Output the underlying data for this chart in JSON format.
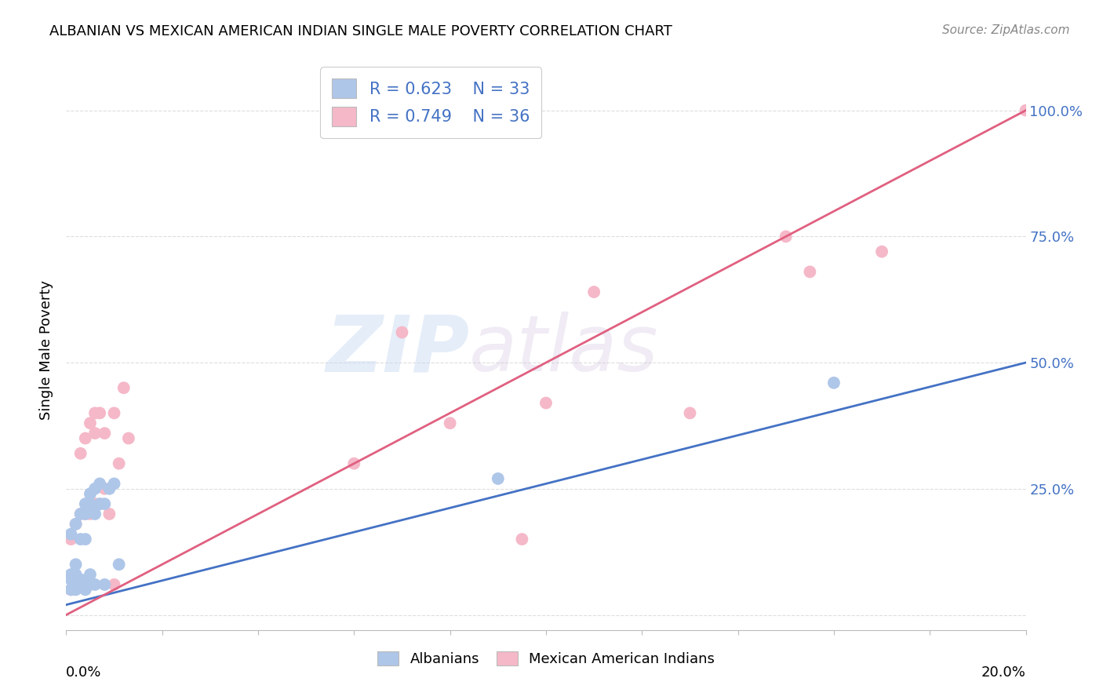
{
  "title": "ALBANIAN VS MEXICAN AMERICAN INDIAN SINGLE MALE POVERTY CORRELATION CHART",
  "source": "Source: ZipAtlas.com",
  "ylabel": "Single Male Poverty",
  "xlim": [
    0.0,
    0.2
  ],
  "ylim": [
    -0.03,
    1.08
  ],
  "ytick_values": [
    0.0,
    0.25,
    0.5,
    0.75,
    1.0
  ],
  "ytick_right_labels": [
    "",
    "25.0%",
    "50.0%",
    "75.0%",
    "100.0%"
  ],
  "albanian_color": "#aec6e8",
  "mexican_color": "#f5b8c8",
  "albanian_line_color": "#4472c4",
  "mexican_line_color": "#e06080",
  "albanian_R": 0.623,
  "albanian_N": 33,
  "mexican_R": 0.749,
  "mexican_N": 36,
  "watermark_zip": "ZIP",
  "watermark_atlas": "atlas",
  "background_color": "#ffffff",
  "grid_color": "#dddddd",
  "albanian_x": [
    0.001,
    0.001,
    0.001,
    0.001,
    0.002,
    0.002,
    0.002,
    0.002,
    0.003,
    0.003,
    0.003,
    0.003,
    0.004,
    0.004,
    0.004,
    0.004,
    0.004,
    0.005,
    0.005,
    0.005,
    0.005,
    0.006,
    0.006,
    0.006,
    0.007,
    0.007,
    0.008,
    0.008,
    0.009,
    0.01,
    0.011,
    0.09,
    0.16
  ],
  "albanian_y": [
    0.05,
    0.07,
    0.08,
    0.16,
    0.05,
    0.08,
    0.1,
    0.18,
    0.06,
    0.07,
    0.15,
    0.2,
    0.05,
    0.06,
    0.15,
    0.2,
    0.22,
    0.06,
    0.08,
    0.22,
    0.24,
    0.06,
    0.2,
    0.25,
    0.22,
    0.26,
    0.06,
    0.22,
    0.25,
    0.26,
    0.1,
    0.27,
    0.46
  ],
  "mexican_x": [
    0.001,
    0.001,
    0.002,
    0.002,
    0.003,
    0.003,
    0.003,
    0.004,
    0.004,
    0.005,
    0.005,
    0.005,
    0.006,
    0.006,
    0.006,
    0.007,
    0.007,
    0.008,
    0.008,
    0.009,
    0.01,
    0.01,
    0.011,
    0.012,
    0.013,
    0.06,
    0.07,
    0.08,
    0.095,
    0.1,
    0.11,
    0.13,
    0.15,
    0.155,
    0.17,
    0.2
  ],
  "mexican_y": [
    0.05,
    0.15,
    0.06,
    0.18,
    0.06,
    0.2,
    0.32,
    0.2,
    0.35,
    0.2,
    0.22,
    0.38,
    0.22,
    0.36,
    0.4,
    0.22,
    0.4,
    0.25,
    0.36,
    0.2,
    0.06,
    0.4,
    0.3,
    0.45,
    0.35,
    0.3,
    0.56,
    0.38,
    0.15,
    0.42,
    0.64,
    0.4,
    0.75,
    0.68,
    0.72,
    1.0
  ],
  "alb_line_x": [
    0.0,
    0.2
  ],
  "alb_line_y": [
    0.02,
    0.5
  ],
  "mex_line_x": [
    0.0,
    0.2
  ],
  "mex_line_y": [
    0.0,
    1.0
  ]
}
